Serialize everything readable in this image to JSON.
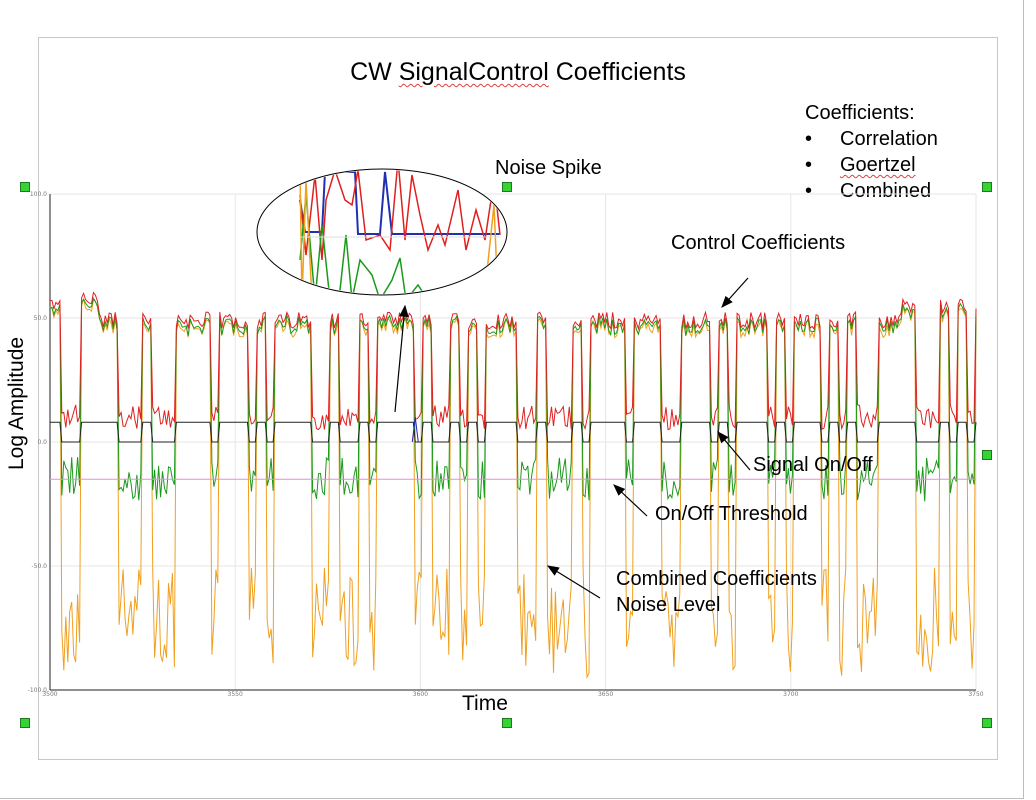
{
  "chart_data": {
    "type": "line",
    "title_part1": "CW ",
    "title_part2": "SignalControl",
    "title_part3": " Coefficients",
    "xlabel": "Time",
    "ylabel": "Log Amplitude",
    "ylim": [
      -100,
      100
    ],
    "y_ticks": [
      "100.0",
      "50.0",
      "0.0",
      "-50.0",
      "-100.0"
    ],
    "x_ticks": [
      "3500",
      "3550",
      "3600",
      "3650",
      "3700",
      "3750"
    ],
    "grid": true,
    "legend_title": "Coefficients:",
    "legend_items": [
      "Correlation",
      "Goertzel",
      "Combined"
    ],
    "series": [
      {
        "name": "Correlation",
        "color": "#e02020"
      },
      {
        "name": "Goertzel",
        "color": "#1a9a1a"
      },
      {
        "name": "Combined",
        "color": "#f0a020"
      },
      {
        "name": "Signal On/Off",
        "color": "#2020c0"
      },
      {
        "name": "On/Off Threshold",
        "color": "#e88ae0"
      }
    ],
    "annotations": {
      "noise_spike": "Noise Spike",
      "control_coefficients": "Control Coefficients",
      "signal_on_off": "Signal On/Off",
      "threshold": "On/Off Threshold",
      "combined_line1": "Combined Coefficients",
      "combined_line2": "Noise Level"
    }
  }
}
